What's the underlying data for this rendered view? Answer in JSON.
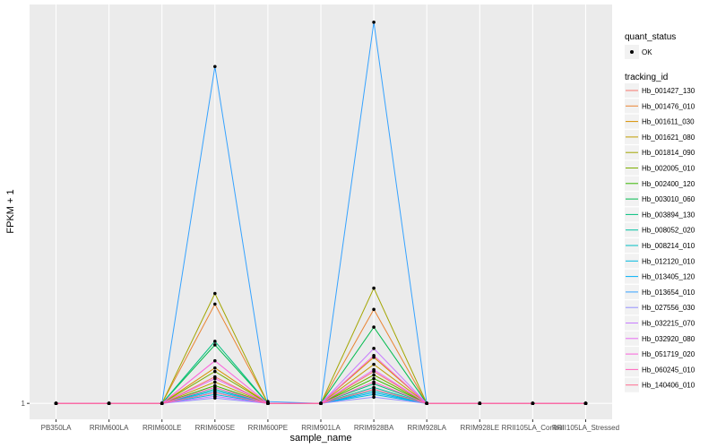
{
  "chart_data": {
    "type": "line",
    "xlabel": "sample_name",
    "ylabel": "FPKM + 1",
    "categories": [
      "PB350LA",
      "RRIM600LA",
      "RRIM600LE",
      "RRIM600SE",
      "RRIM600PE",
      "RRIM901LA",
      "RRIM928BA",
      "RRIM928LA",
      "RRIM928LE",
      "RRII105LA_Control",
      "RRII105LA_Stressed"
    ],
    "y_ticks": [
      {
        "value": 1,
        "label": "1"
      }
    ],
    "ylim": [
      0.1,
      23.5
    ],
    "grid": true,
    "legend_position": "right",
    "legends": {
      "quant_status": {
        "title": "quant_status",
        "items": [
          "OK"
        ]
      },
      "tracking_id": {
        "title": "tracking_id"
      }
    },
    "series": [
      {
        "name": "Hb_001427_130",
        "color": "#F8766D",
        "values": [
          1,
          1,
          1,
          2.5,
          1,
          1,
          2.8,
          1,
          1,
          1,
          1
        ]
      },
      {
        "name": "Hb_001476_010",
        "color": "#EA8331",
        "values": [
          1,
          1,
          1,
          6.6,
          1,
          1,
          6.3,
          1,
          1,
          1,
          1
        ]
      },
      {
        "name": "Hb_001611_030",
        "color": "#D89000",
        "values": [
          1,
          1,
          1,
          3.0,
          1,
          1,
          3.6,
          1,
          1,
          1,
          1
        ]
      },
      {
        "name": "Hb_001621_080",
        "color": "#C09B00",
        "values": [
          1,
          1,
          1,
          2.2,
          1,
          1,
          3.2,
          1,
          1,
          1,
          1
        ]
      },
      {
        "name": "Hb_001814_090",
        "color": "#A3A500",
        "values": [
          1,
          1,
          1,
          7.2,
          1,
          1,
          7.5,
          1,
          1,
          1,
          1
        ]
      },
      {
        "name": "Hb_002005_010",
        "color": "#7CAE00",
        "values": [
          1,
          1,
          1,
          2.8,
          1,
          1,
          2.6,
          1,
          1,
          1,
          1
        ]
      },
      {
        "name": "Hb_002400_120",
        "color": "#39B600",
        "values": [
          1,
          1,
          1,
          2.0,
          1,
          1,
          2.4,
          1,
          1,
          1,
          1
        ]
      },
      {
        "name": "Hb_003010_060",
        "color": "#00BB4E",
        "values": [
          1,
          1,
          1,
          4.3,
          1,
          1,
          5.3,
          1,
          1,
          1,
          1
        ]
      },
      {
        "name": "Hb_003894_130",
        "color": "#00BF7D",
        "values": [
          1,
          1,
          1,
          4.5,
          1,
          1,
          2.1,
          1,
          1,
          1,
          1
        ]
      },
      {
        "name": "Hb_008052_020",
        "color": "#00C1A3",
        "values": [
          1,
          1,
          1,
          1.8,
          1,
          1,
          1.9,
          1,
          1,
          1,
          1
        ]
      },
      {
        "name": "Hb_008214_010",
        "color": "#00BFC4",
        "values": [
          1,
          1,
          1,
          1.6,
          1,
          1,
          1.7,
          1,
          1,
          1,
          1
        ]
      },
      {
        "name": "Hb_012120_010",
        "color": "#00BAE0",
        "values": [
          1,
          1,
          1,
          1.5,
          1,
          1,
          1.5,
          1,
          1,
          1,
          1
        ]
      },
      {
        "name": "Hb_013405_120",
        "color": "#00B0F6",
        "values": [
          1,
          1,
          1,
          1.7,
          1,
          1,
          1.6,
          1,
          1,
          1,
          1
        ]
      },
      {
        "name": "Hb_013654_010",
        "color": "#35A2FF",
        "values": [
          1,
          1,
          1,
          20.0,
          1.1,
          1,
          22.5,
          1,
          1,
          1,
          1
        ]
      },
      {
        "name": "Hb_027556_030",
        "color": "#9590FF",
        "values": [
          1,
          1,
          1,
          1.3,
          1,
          1,
          1.35,
          1,
          1,
          1,
          1
        ]
      },
      {
        "name": "Hb_032215_070",
        "color": "#C77CFF",
        "values": [
          1,
          1,
          1,
          1.4,
          1,
          1,
          4.1,
          1,
          1,
          1,
          1
        ]
      },
      {
        "name": "Hb_032920_080",
        "color": "#E76BF3",
        "values": [
          1,
          1,
          1,
          2.4,
          1,
          1,
          2.9,
          1,
          1,
          1,
          1
        ]
      },
      {
        "name": "Hb_051719_020",
        "color": "#FA62DB",
        "values": [
          1,
          1,
          1,
          3.4,
          1,
          1,
          3.7,
          1,
          1,
          1,
          1
        ]
      },
      {
        "name": "Hb_060245_010",
        "color": "#FF62BC",
        "values": [
          1,
          1,
          1,
          1.9,
          1,
          1,
          2.2,
          1,
          1,
          1,
          1
        ]
      },
      {
        "name": "Hb_140406_010",
        "color": "#FF6C91",
        "values": [
          1,
          1,
          1,
          1.6,
          1,
          1,
          1.8,
          1,
          1,
          1,
          1
        ]
      }
    ]
  }
}
